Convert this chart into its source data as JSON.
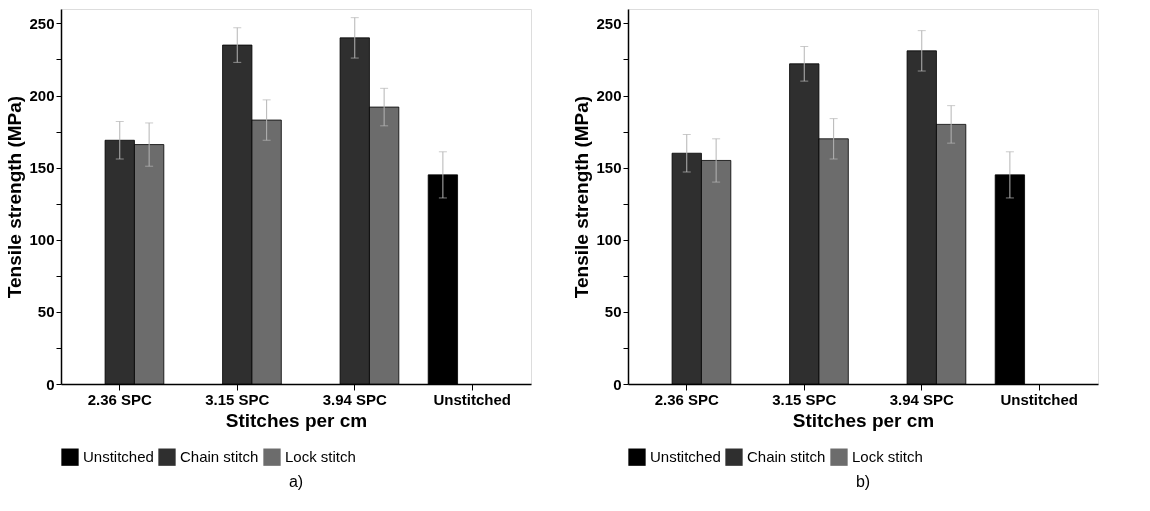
{
  "chart_data": [
    {
      "type": "bar",
      "xlabel": "Stitches per cm",
      "ylabel": "Tensile strength (MPa)",
      "annotations": [
        "a)"
      ],
      "categories": [
        "2.36 SPC",
        "3.15 SPC",
        "3.94 SPC",
        "Unstitched"
      ],
      "series": [
        {
          "name": "Unstitched",
          "color": "#000000",
          "values": [
            null,
            null,
            null,
            145
          ],
          "errors": [
            null,
            null,
            null,
            16
          ]
        },
        {
          "name": "Chain stitch",
          "color": "#2f2f2f",
          "values": [
            169,
            235,
            240,
            null
          ],
          "errors": [
            13,
            12,
            14,
            null
          ]
        },
        {
          "name": "Lock stitch",
          "color": "#6c6c6c",
          "values": [
            166,
            183,
            192,
            null
          ],
          "errors": [
            15,
            14,
            13,
            null
          ]
        }
      ],
      "ylim": [
        0,
        260
      ],
      "yticks": [
        0,
        {
          "value": 25,
          "label": null
        },
        50,
        {
          "value": 75,
          "label": null
        },
        100,
        {
          "value": 125,
          "label": null
        },
        150,
        {
          "value": 175,
          "label": null
        },
        200,
        {
          "value": 225,
          "label": null
        },
        250
      ],
      "grid": false,
      "legend": "bottom"
    },
    {
      "type": "bar",
      "xlabel": "Stitches per cm",
      "ylabel": "Tensile strength (MPa)",
      "annotations": [
        "b)"
      ],
      "categories": [
        "2.36 SPC",
        "3.15 SPC",
        "3.94 SPC",
        "Unstitched"
      ],
      "series": [
        {
          "name": "Unstitched",
          "color": "#000000",
          "values": [
            null,
            null,
            null,
            145
          ],
          "errors": [
            null,
            null,
            null,
            16
          ]
        },
        {
          "name": "Chain stitch",
          "color": "#2f2f2f",
          "values": [
            160,
            222,
            231,
            null
          ],
          "errors": [
            13,
            12,
            14,
            null
          ]
        },
        {
          "name": "Lock stitch",
          "color": "#6c6c6c",
          "values": [
            155,
            170,
            180,
            null
          ],
          "errors": [
            15,
            14,
            13,
            null
          ]
        }
      ],
      "ylim": [
        0,
        260
      ],
      "yticks": [
        0,
        {
          "value": 25,
          "label": null
        },
        50,
        {
          "value": 75,
          "label": null
        },
        100,
        {
          "value": 125,
          "label": null
        },
        150,
        {
          "value": 175,
          "label": null
        },
        200,
        {
          "value": 225,
          "label": null
        },
        250
      ],
      "grid": false,
      "legend": "bottom"
    }
  ]
}
